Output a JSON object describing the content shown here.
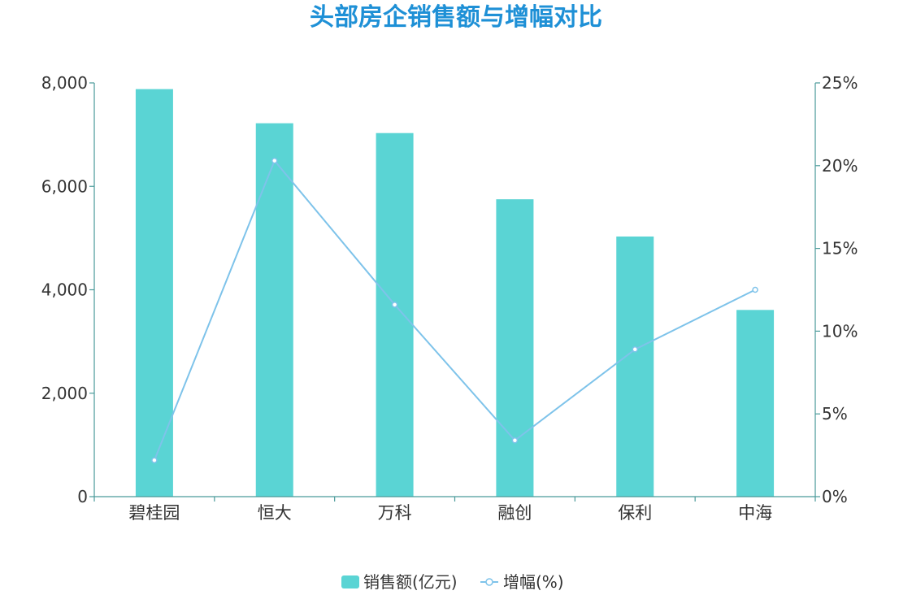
{
  "chart_data": {
    "type": "bar",
    "title": "头部房企销售额与增幅对比",
    "categories": [
      "碧桂园",
      "恒大",
      "万科",
      "融创",
      "保利",
      "中海"
    ],
    "series": [
      {
        "name": "销售额(亿元)",
        "type": "bar",
        "axis": "left",
        "color": "#5ad4d4",
        "values": [
          7880,
          7220,
          7030,
          5750,
          5030,
          3610
        ]
      },
      {
        "name": "增幅(%)",
        "type": "line",
        "axis": "right",
        "color": "#7ec3ea",
        "values": [
          2.2,
          20.3,
          11.6,
          3.4,
          8.9,
          12.5
        ]
      }
    ],
    "y_left": {
      "range": [
        0,
        8000
      ],
      "ticks": [
        0,
        2000,
        4000,
        6000,
        8000
      ],
      "tick_labels": [
        "0",
        "2,000",
        "4,000",
        "6,000",
        "8,000"
      ]
    },
    "y_right": {
      "range": [
        0,
        25
      ],
      "ticks": [
        0,
        5,
        10,
        15,
        20,
        25
      ],
      "tick_labels": [
        "0%",
        "5%",
        "10%",
        "15%",
        "20%",
        "25%"
      ]
    },
    "grid": false,
    "legend": "bottom-center",
    "axis_color": "#4a9a9a"
  }
}
